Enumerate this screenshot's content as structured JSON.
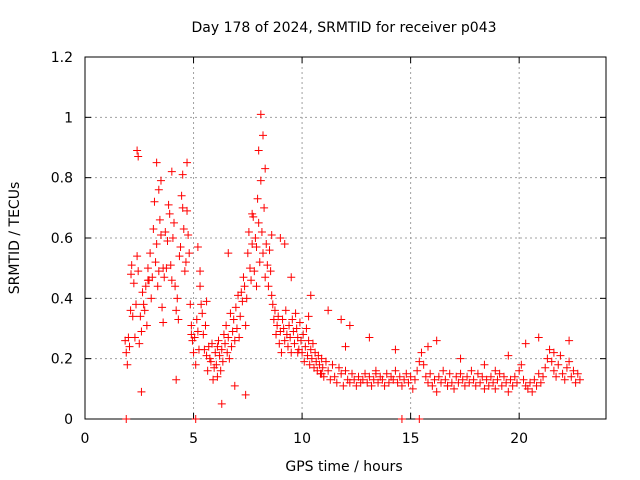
{
  "chart_data": {
    "type": "scatter",
    "title": "Day 178 of 2024, SRMTID for receiver p043",
    "xlabel": "GPS time / hours",
    "ylabel": "SRMTID / TECUs",
    "xlim": [
      0,
      24
    ],
    "ylim": [
      0,
      1.2
    ],
    "xticks": [
      0,
      5,
      10,
      15,
      20
    ],
    "xtick_labels": [
      "0",
      "5",
      "10",
      "15",
      "20"
    ],
    "yticks": [
      0,
      0.2,
      0.4,
      0.6,
      0.8,
      1,
      1.2
    ],
    "ytick_labels": [
      "0",
      "0.2",
      "0.4",
      "0.6",
      "0.8",
      "1",
      "1.2"
    ],
    "grid": true,
    "marker": "+",
    "color": "#ff0000",
    "series": [
      {
        "name": "SRMTID p043",
        "x": [
          1.85,
          1.9,
          1.95,
          2.0,
          2.05,
          2.1,
          2.12,
          2.15,
          2.2,
          2.25,
          2.3,
          2.35,
          2.4,
          2.45,
          2.5,
          2.55,
          2.6,
          2.65,
          2.7,
          2.75,
          2.8,
          2.85,
          2.9,
          2.95,
          3.0,
          3.05,
          3.1,
          3.15,
          3.2,
          3.25,
          3.3,
          3.35,
          3.4,
          3.45,
          3.5,
          3.55,
          3.6,
          3.65,
          3.7,
          3.75,
          3.8,
          3.85,
          3.9,
          3.95,
          4.0,
          4.05,
          4.1,
          4.15,
          4.2,
          4.25,
          4.3,
          4.35,
          4.4,
          4.45,
          4.5,
          4.55,
          4.6,
          4.65,
          4.7,
          4.75,
          4.8,
          4.85,
          4.9,
          4.95,
          5.0,
          5.05,
          5.1,
          5.15,
          5.2,
          5.25,
          5.3,
          5.35,
          5.4,
          5.45,
          5.5,
          5.55,
          5.6,
          5.65,
          5.7,
          5.75,
          5.8,
          5.85,
          5.9,
          5.95,
          6.0,
          6.05,
          6.1,
          6.15,
          6.2,
          6.25,
          6.3,
          6.35,
          6.4,
          6.45,
          6.5,
          6.55,
          6.6,
          6.65,
          6.7,
          6.75,
          6.8,
          6.85,
          6.9,
          6.95,
          7.0,
          7.05,
          7.1,
          7.15,
          7.2,
          7.25,
          7.3,
          7.35,
          7.4,
          7.45,
          7.5,
          7.55,
          7.6,
          7.65,
          7.7,
          7.75,
          7.8,
          7.85,
          7.9,
          7.95,
          8.0,
          8.05,
          8.1,
          8.15,
          8.2,
          8.25,
          8.3,
          8.35,
          8.4,
          8.45,
          8.5,
          8.55,
          8.6,
          8.65,
          8.7,
          8.75,
          8.8,
          8.85,
          8.9,
          8.95,
          9.0,
          9.05,
          9.1,
          9.15,
          9.2,
          9.25,
          9.3,
          9.35,
          9.4,
          9.45,
          9.5,
          9.55,
          9.6,
          9.65,
          9.7,
          9.75,
          9.8,
          9.85,
          9.9,
          9.95,
          10.0,
          10.05,
          10.1,
          10.15,
          10.2,
          10.25,
          10.3,
          10.35,
          10.4,
          10.45,
          10.5,
          10.55,
          10.6,
          10.65,
          10.7,
          10.75,
          10.8,
          10.85,
          10.9,
          10.95,
          11.0,
          11.1,
          11.2,
          11.3,
          11.4,
          11.5,
          11.6,
          11.7,
          11.8,
          11.9,
          12.0,
          12.1,
          12.2,
          12.3,
          12.4,
          12.5,
          12.6,
          12.7,
          12.8,
          12.9,
          13.0,
          13.1,
          13.2,
          13.3,
          13.4,
          13.5,
          13.6,
          13.7,
          13.8,
          13.9,
          14.0,
          14.1,
          14.2,
          14.3,
          14.4,
          14.5,
          14.6,
          14.7,
          14.8,
          14.9,
          15.0,
          15.1,
          15.2,
          15.3,
          15.4,
          15.5,
          15.6,
          15.7,
          15.8,
          15.9,
          16.0,
          16.1,
          16.2,
          16.3,
          16.4,
          16.5,
          16.6,
          16.7,
          16.8,
          16.9,
          17.0,
          17.1,
          17.2,
          17.3,
          17.4,
          17.5,
          17.6,
          17.7,
          17.8,
          17.9,
          18.0,
          18.1,
          18.2,
          18.3,
          18.4,
          18.5,
          18.6,
          18.7,
          18.8,
          18.9,
          19.0,
          19.1,
          19.2,
          19.3,
          19.4,
          19.5,
          19.6,
          19.7,
          19.8,
          19.9,
          20.0,
          20.1,
          20.2,
          20.3,
          20.4,
          20.5,
          20.6,
          20.7,
          20.8,
          20.9,
          21.0,
          21.1,
          21.2,
          21.3,
          21.4,
          21.5,
          21.6,
          21.7,
          21.8,
          21.9,
          22.0,
          22.1,
          22.2,
          22.3,
          22.4,
          22.5,
          22.6,
          22.7,
          22.8,
          2.4,
          2.45,
          3.3,
          4.7,
          8.1,
          8.2,
          8.3,
          1.9,
          5.1,
          14.6,
          15.4,
          3.4,
          3.5,
          4.0,
          4.5,
          7.7,
          8.0,
          5.2,
          5.3,
          6.3,
          6.6,
          6.9,
          9.0,
          9.5,
          10.4,
          11.2,
          11.8,
          12.2,
          13.1,
          14.3,
          15.8,
          16.2,
          17.3,
          18.4,
          19.5,
          20.3,
          20.9,
          21.6,
          22.3,
          2.6,
          2.9,
          3.6,
          4.2,
          4.9,
          5.6,
          6.1,
          7.4,
          7.9,
          8.6,
          9.2,
          9.8,
          10.3,
          10.9,
          12.0,
          13.4,
          16.7,
          18.9
        ],
        "y": [
          0.26,
          0.22,
          0.18,
          0.27,
          0.24,
          0.36,
          0.48,
          0.51,
          0.34,
          0.45,
          0.27,
          0.38,
          0.54,
          0.49,
          0.25,
          0.34,
          0.29,
          0.42,
          0.38,
          0.36,
          0.44,
          0.31,
          0.5,
          0.46,
          0.55,
          0.4,
          0.47,
          0.63,
          0.72,
          0.52,
          0.58,
          0.44,
          0.49,
          0.66,
          0.61,
          0.37,
          0.32,
          0.47,
          0.62,
          0.5,
          0.59,
          0.71,
          0.68,
          0.51,
          0.46,
          0.6,
          0.65,
          0.44,
          0.36,
          0.4,
          0.33,
          0.54,
          0.57,
          0.74,
          0.7,
          0.63,
          0.49,
          0.52,
          0.69,
          0.61,
          0.55,
          0.38,
          0.31,
          0.26,
          0.22,
          0.27,
          0.18,
          0.33,
          0.29,
          0.23,
          0.44,
          0.38,
          0.35,
          0.28,
          0.23,
          0.31,
          0.21,
          0.16,
          0.24,
          0.2,
          0.19,
          0.25,
          0.13,
          0.17,
          0.22,
          0.18,
          0.14,
          0.26,
          0.21,
          0.16,
          0.23,
          0.19,
          0.28,
          0.25,
          0.31,
          0.22,
          0.27,
          0.2,
          0.35,
          0.24,
          0.29,
          0.33,
          0.26,
          0.37,
          0.3,
          0.41,
          0.27,
          0.34,
          0.42,
          0.39,
          0.47,
          0.44,
          0.31,
          0.4,
          0.55,
          0.62,
          0.5,
          0.46,
          0.58,
          0.67,
          0.49,
          0.6,
          0.57,
          0.73,
          0.65,
          0.52,
          0.79,
          0.62,
          0.55,
          0.7,
          0.47,
          0.58,
          0.51,
          0.44,
          0.56,
          0.49,
          0.41,
          0.38,
          0.33,
          0.36,
          0.28,
          0.31,
          0.34,
          0.25,
          0.29,
          0.22,
          0.33,
          0.3,
          0.26,
          0.36,
          0.28,
          0.24,
          0.31,
          0.27,
          0.22,
          0.33,
          0.29,
          0.25,
          0.35,
          0.3,
          0.27,
          0.23,
          0.32,
          0.26,
          0.22,
          0.28,
          0.19,
          0.24,
          0.3,
          0.21,
          0.26,
          0.18,
          0.23,
          0.2,
          0.25,
          0.17,
          0.22,
          0.19,
          0.16,
          0.21,
          0.18,
          0.15,
          0.2,
          0.17,
          0.14,
          0.19,
          0.16,
          0.13,
          0.18,
          0.14,
          0.12,
          0.17,
          0.15,
          0.11,
          0.16,
          0.13,
          0.12,
          0.15,
          0.13,
          0.11,
          0.14,
          0.12,
          0.13,
          0.15,
          0.12,
          0.14,
          0.11,
          0.13,
          0.15,
          0.12,
          0.14,
          0.13,
          0.11,
          0.15,
          0.12,
          0.14,
          0.13,
          0.16,
          0.12,
          0.14,
          0.11,
          0.13,
          0.15,
          0.12,
          0.14,
          0.1,
          0.13,
          0.16,
          0.19,
          0.22,
          0.18,
          0.14,
          0.12,
          0.15,
          0.11,
          0.13,
          0.09,
          0.14,
          0.12,
          0.16,
          0.13,
          0.11,
          0.15,
          0.12,
          0.1,
          0.14,
          0.12,
          0.15,
          0.13,
          0.11,
          0.14,
          0.12,
          0.16,
          0.13,
          0.11,
          0.15,
          0.12,
          0.14,
          0.1,
          0.13,
          0.11,
          0.14,
          0.12,
          0.1,
          0.13,
          0.15,
          0.11,
          0.14,
          0.12,
          0.09,
          0.13,
          0.11,
          0.14,
          0.12,
          0.16,
          0.18,
          0.13,
          0.11,
          0.1,
          0.12,
          0.09,
          0.13,
          0.11,
          0.15,
          0.12,
          0.14,
          0.17,
          0.2,
          0.23,
          0.19,
          0.16,
          0.14,
          0.18,
          0.21,
          0.15,
          0.13,
          0.17,
          0.19,
          0.14,
          0.16,
          0.12,
          0.15,
          0.13,
          0.89,
          0.87,
          0.85,
          0.85,
          1.01,
          0.94,
          0.83,
          0.0,
          0.0,
          0.0,
          0.0,
          0.76,
          0.79,
          0.82,
          0.81,
          0.68,
          0.89,
          0.57,
          0.49,
          0.05,
          0.55,
          0.11,
          0.6,
          0.47,
          0.41,
          0.36,
          0.33,
          0.31,
          0.27,
          0.23,
          0.24,
          0.26,
          0.2,
          0.18,
          0.21,
          0.25,
          0.27,
          0.22,
          0.26,
          0.09,
          0.46,
          0.5,
          0.13,
          0.28,
          0.39,
          0.24,
          0.08,
          0.44,
          0.61,
          0.58,
          0.22,
          0.34,
          0.15,
          0.24,
          0.16,
          0.11,
          0.16
        ]
      }
    ]
  }
}
